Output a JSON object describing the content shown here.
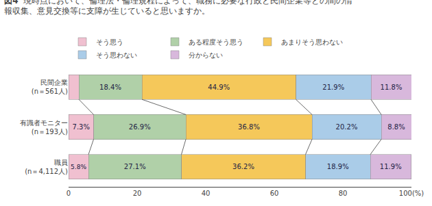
{
  "chart_data": {
    "type": "bar",
    "orientation": "horizontal",
    "stacked": true,
    "title": "図4",
    "subtitle": "現時点において、倫理法・倫理規程によって、職務に必要な行政と民間企業等との間の情\n報収集、意見交換等に支障が生じていると思いますか。",
    "categories": [
      "民間企業\n(n＝561人)",
      "有識者モニター\n(n＝193人)",
      "職員\n(n＝4,112人)"
    ],
    "series": [
      {
        "name": "そう思う",
        "color": "#f0c0d0",
        "values": [
          3.0,
          7.3,
          5.8
        ],
        "value_labels": [
          null,
          "7.3%",
          "5.8%"
        ]
      },
      {
        "name": "ある程度そう思う",
        "color": "#b0d0a8",
        "values": [
          18.4,
          26.9,
          27.1
        ],
        "value_labels": [
          "18.4%",
          "26.9%",
          "27.1%"
        ]
      },
      {
        "name": "あまりそう思わない",
        "color": "#f5c85a",
        "values": [
          44.9,
          36.8,
          36.2
        ],
        "value_labels": [
          "44.9%",
          "36.8%",
          "36.2%"
        ]
      },
      {
        "name": "そう思わない",
        "color": "#aacce8",
        "values": [
          21.9,
          20.2,
          18.9
        ],
        "value_labels": [
          "21.9%",
          "20.2%",
          "18.9%"
        ]
      },
      {
        "name": "分からない",
        "color": "#d8b8dc",
        "values": [
          11.8,
          8.8,
          11.9
        ],
        "value_labels": [
          "11.8%",
          "8.8%",
          "11.9%"
        ]
      }
    ],
    "xlim": [
      0,
      100
    ],
    "xticks": [
      0,
      20,
      40,
      60,
      80,
      {
        "value": 100,
        "label": "100(%)"
      }
    ],
    "grid": false,
    "legend": "top",
    "data_labels": true
  }
}
